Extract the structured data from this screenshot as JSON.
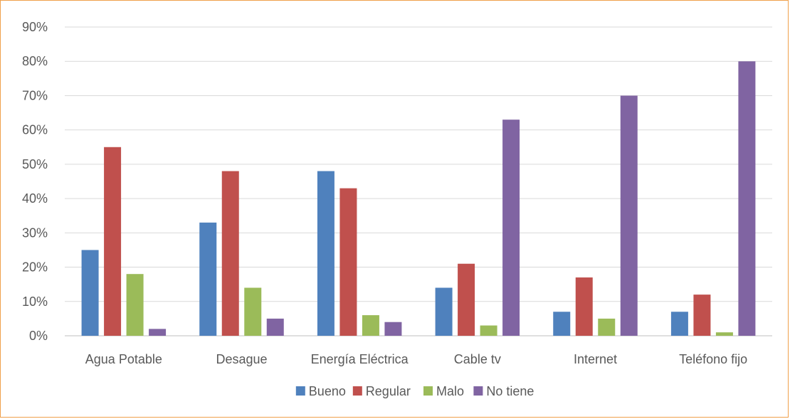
{
  "chart_data": {
    "type": "bar",
    "categories": [
      "Agua Potable",
      "Desague",
      "Energía Eléctrica",
      "Cable tv",
      "Internet",
      "Teléfono fijo"
    ],
    "series": [
      {
        "name": "Bueno",
        "color": "#4f81bd",
        "values": [
          25,
          33,
          48,
          14,
          7,
          7
        ]
      },
      {
        "name": "Regular",
        "color": "#c0504d",
        "values": [
          55,
          48,
          43,
          21,
          17,
          12
        ]
      },
      {
        "name": "Malo",
        "color": "#9bbb59",
        "values": [
          18,
          14,
          6,
          3,
          5,
          1
        ]
      },
      {
        "name": "No tiene",
        "color": "#8064a2",
        "values": [
          2,
          5,
          4,
          63,
          70,
          80
        ]
      }
    ],
    "ylim": [
      0,
      90
    ],
    "yticks": [
      "0%",
      "10%",
      "20%",
      "30%",
      "40%",
      "50%",
      "60%",
      "70%",
      "80%",
      "90%"
    ],
    "grid": true,
    "legend_position": "bottom"
  }
}
